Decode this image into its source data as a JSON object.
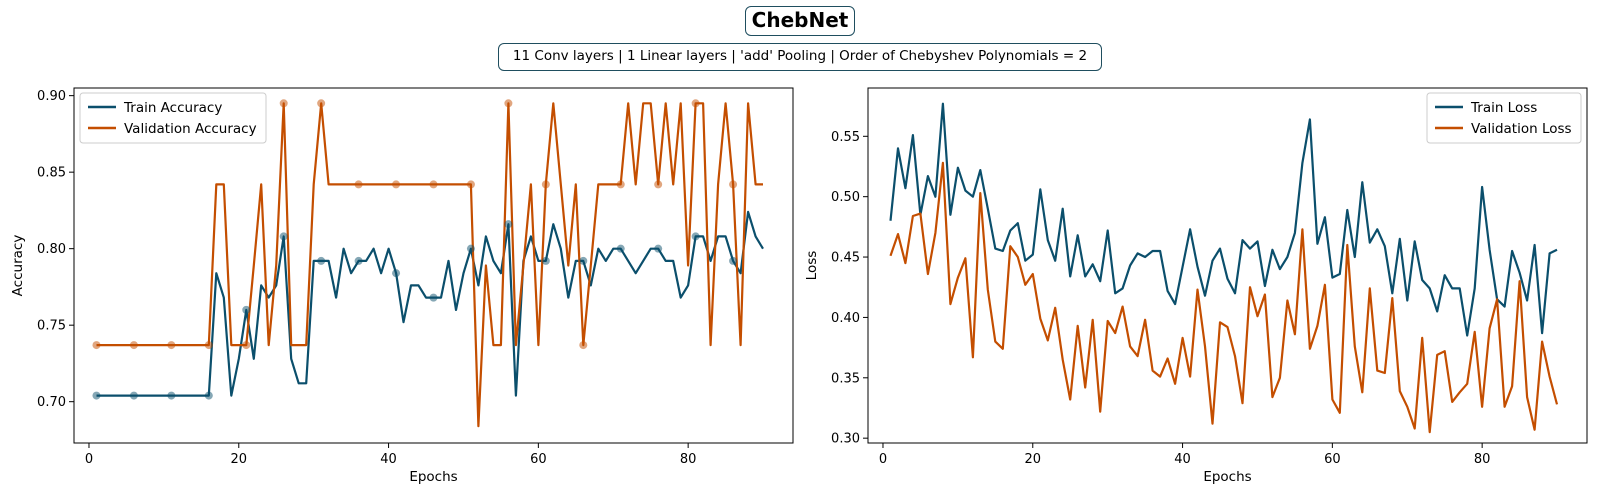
{
  "header": {
    "title": "ChebNet",
    "subtitle": "11 Conv layers | 1 Linear layers | 'add' Pooling | Order of Chebyshev Polynomials = 2"
  },
  "colors": {
    "train": "#0b4f6c",
    "validation": "#c44e00"
  },
  "chart_data": [
    {
      "type": "line",
      "xlabel": "Epochs",
      "ylabel": "Accuracy",
      "xlim": [
        -2,
        94
      ],
      "ylim": [
        0.673,
        0.905
      ],
      "xticks": [
        0,
        20,
        40,
        60,
        80
      ],
      "yticks": [
        0.7,
        0.75,
        0.8,
        0.85,
        0.9
      ],
      "legend": {
        "position": "top-left"
      },
      "x": [
        1,
        2,
        3,
        4,
        5,
        6,
        7,
        8,
        9,
        10,
        11,
        12,
        13,
        14,
        15,
        16,
        17,
        18,
        19,
        20,
        21,
        22,
        23,
        24,
        25,
        26,
        27,
        28,
        29,
        30,
        31,
        32,
        33,
        34,
        35,
        36,
        37,
        38,
        39,
        40,
        41,
        42,
        43,
        44,
        45,
        46,
        47,
        48,
        49,
        50,
        51,
        52,
        53,
        54,
        55,
        56,
        57,
        58,
        59,
        60,
        61,
        62,
        63,
        64,
        65,
        66,
        67,
        68,
        69,
        70,
        71,
        72,
        73,
        74,
        75,
        76,
        77,
        78,
        79,
        80,
        81,
        82,
        83,
        84,
        85,
        86,
        87,
        88,
        89,
        90
      ],
      "series": [
        {
          "name": "Train Accuracy",
          "values": [
            0.704,
            0.704,
            0.704,
            0.704,
            0.704,
            0.704,
            0.704,
            0.704,
            0.704,
            0.704,
            0.704,
            0.704,
            0.704,
            0.704,
            0.704,
            0.704,
            0.784,
            0.768,
            0.704,
            0.728,
            0.76,
            0.728,
            0.776,
            0.768,
            0.776,
            0.808,
            0.728,
            0.712,
            0.712,
            0.792,
            0.792,
            0.792,
            0.768,
            0.8,
            0.784,
            0.792,
            0.792,
            0.8,
            0.784,
            0.8,
            0.784,
            0.752,
            0.776,
            0.776,
            0.768,
            0.768,
            0.768,
            0.792,
            0.76,
            0.784,
            0.8,
            0.776,
            0.808,
            0.792,
            0.784,
            0.816,
            0.704,
            0.792,
            0.808,
            0.792,
            0.792,
            0.816,
            0.8,
            0.768,
            0.792,
            0.792,
            0.776,
            0.8,
            0.792,
            0.8,
            0.8,
            0.792,
            0.784,
            0.792,
            0.8,
            0.8,
            0.792,
            0.792,
            0.768,
            0.776,
            0.808,
            0.808,
            0.792,
            0.808,
            0.808,
            0.792,
            0.784,
            0.824,
            0.808,
            0.8
          ]
        },
        {
          "name": "Validation Accuracy",
          "values": [
            0.737,
            0.737,
            0.737,
            0.737,
            0.737,
            0.737,
            0.737,
            0.737,
            0.737,
            0.737,
            0.737,
            0.737,
            0.737,
            0.737,
            0.737,
            0.737,
            0.842,
            0.842,
            0.737,
            0.737,
            0.737,
            0.789,
            0.842,
            0.737,
            0.789,
            0.895,
            0.737,
            0.737,
            0.737,
            0.842,
            0.895,
            0.842,
            0.842,
            0.842,
            0.842,
            0.842,
            0.842,
            0.842,
            0.842,
            0.842,
            0.842,
            0.842,
            0.842,
            0.842,
            0.842,
            0.842,
            0.842,
            0.842,
            0.842,
            0.842,
            0.842,
            0.684,
            0.789,
            0.737,
            0.737,
            0.895,
            0.737,
            0.789,
            0.842,
            0.737,
            0.842,
            0.895,
            0.842,
            0.789,
            0.842,
            0.737,
            0.789,
            0.842,
            0.842,
            0.842,
            0.842,
            0.895,
            0.842,
            0.895,
            0.895,
            0.842,
            0.895,
            0.842,
            0.895,
            0.789,
            0.895,
            0.895,
            0.737,
            0.842,
            0.895,
            0.842,
            0.737,
            0.895,
            0.842,
            0.842
          ]
        }
      ],
      "markers_x": [
        1,
        6,
        11,
        16,
        21,
        26,
        31,
        36,
        41,
        46,
        51,
        56,
        61,
        66,
        71,
        76,
        81,
        86
      ]
    },
    {
      "type": "line",
      "xlabel": "Epochs",
      "ylabel": "Loss",
      "xlim": [
        -2,
        94
      ],
      "ylim": [
        0.296,
        0.59
      ],
      "xticks": [
        0,
        20,
        40,
        60,
        80
      ],
      "yticks": [
        0.3,
        0.35,
        0.4,
        0.45,
        0.5,
        0.55
      ],
      "legend": {
        "position": "top-right"
      },
      "x": [
        1,
        2,
        3,
        4,
        5,
        6,
        7,
        8,
        9,
        10,
        11,
        12,
        13,
        14,
        15,
        16,
        17,
        18,
        19,
        20,
        21,
        22,
        23,
        24,
        25,
        26,
        27,
        28,
        29,
        30,
        31,
        32,
        33,
        34,
        35,
        36,
        37,
        38,
        39,
        40,
        41,
        42,
        43,
        44,
        45,
        46,
        47,
        48,
        49,
        50,
        51,
        52,
        53,
        54,
        55,
        56,
        57,
        58,
        59,
        60,
        61,
        62,
        63,
        64,
        65,
        66,
        67,
        68,
        69,
        70,
        71,
        72,
        73,
        74,
        75,
        76,
        77,
        78,
        79,
        80,
        81,
        82,
        83,
        84,
        85,
        86,
        87,
        88,
        89,
        90
      ],
      "series": [
        {
          "name": "Train Loss",
          "values": [
            0.48,
            0.54,
            0.507,
            0.551,
            0.485,
            0.517,
            0.5,
            0.577,
            0.485,
            0.524,
            0.505,
            0.5,
            0.522,
            0.49,
            0.457,
            0.455,
            0.472,
            0.478,
            0.447,
            0.452,
            0.506,
            0.464,
            0.447,
            0.49,
            0.434,
            0.468,
            0.434,
            0.444,
            0.43,
            0.472,
            0.42,
            0.424,
            0.443,
            0.453,
            0.45,
            0.455,
            0.455,
            0.422,
            0.411,
            0.442,
            0.473,
            0.442,
            0.418,
            0.447,
            0.457,
            0.432,
            0.42,
            0.464,
            0.457,
            0.463,
            0.426,
            0.456,
            0.44,
            0.45,
            0.47,
            0.528,
            0.564,
            0.461,
            0.483,
            0.433,
            0.436,
            0.489,
            0.45,
            0.512,
            0.462,
            0.473,
            0.459,
            0.42,
            0.465,
            0.414,
            0.463,
            0.431,
            0.424,
            0.405,
            0.435,
            0.424,
            0.424,
            0.385,
            0.424,
            0.508,
            0.456,
            0.415,
            0.409,
            0.455,
            0.437,
            0.414,
            0.46,
            0.387,
            0.453,
            0.456
          ]
        },
        {
          "name": "Validation Loss",
          "values": [
            0.451,
            0.469,
            0.445,
            0.484,
            0.486,
            0.436,
            0.47,
            0.528,
            0.411,
            0.433,
            0.449,
            0.367,
            0.503,
            0.423,
            0.38,
            0.374,
            0.459,
            0.45,
            0.427,
            0.436,
            0.399,
            0.381,
            0.408,
            0.365,
            0.332,
            0.393,
            0.342,
            0.398,
            0.322,
            0.397,
            0.387,
            0.409,
            0.376,
            0.368,
            0.398,
            0.356,
            0.351,
            0.366,
            0.345,
            0.383,
            0.351,
            0.423,
            0.376,
            0.312,
            0.396,
            0.392,
            0.368,
            0.329,
            0.425,
            0.401,
            0.419,
            0.334,
            0.35,
            0.414,
            0.386,
            0.473,
            0.374,
            0.393,
            0.427,
            0.332,
            0.321,
            0.46,
            0.376,
            0.338,
            0.424,
            0.356,
            0.354,
            0.416,
            0.339,
            0.326,
            0.308,
            0.383,
            0.305,
            0.369,
            0.372,
            0.33,
            0.338,
            0.345,
            0.388,
            0.326,
            0.391,
            0.415,
            0.326,
            0.343,
            0.43,
            0.334,
            0.307,
            0.38,
            0.351,
            0.328
          ]
        }
      ]
    }
  ]
}
